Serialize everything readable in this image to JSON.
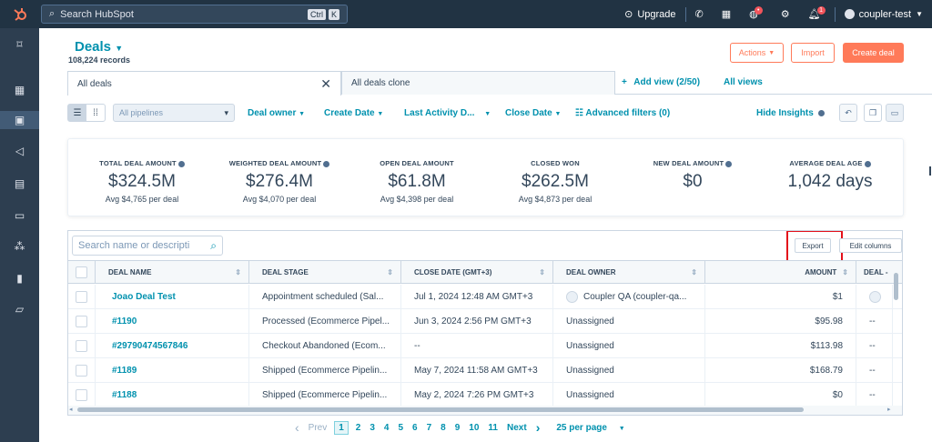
{
  "topbar": {
    "search_placeholder": "Search HubSpot",
    "shortcut_keys": [
      "Ctrl",
      "K"
    ],
    "upgrade_label": "Upgrade",
    "notification_badge_1": "•",
    "notification_badge_2": "1",
    "account_label": "coupler-test"
  },
  "header": {
    "title": "Deals",
    "records": "108,224 records",
    "actions_label": "Actions",
    "import_label": "Import",
    "create_label": "Create deal"
  },
  "tabs": {
    "items": [
      "All deals",
      "All deals clone"
    ],
    "add_view": "Add view (2/50)",
    "all_views": "All views"
  },
  "filters": {
    "pipeline_select": "All pipelines",
    "deal_owner": "Deal owner",
    "create_date": "Create Date",
    "last_activity": "Last Activity D...",
    "close_date": "Close Date",
    "advanced": "Advanced filters (0)",
    "hide_insights": "Hide Insights"
  },
  "stats": [
    {
      "label": "TOTAL DEAL AMOUNT",
      "value": "$324.5M",
      "sub": "Avg $4,765 per deal",
      "info": true
    },
    {
      "label": "WEIGHTED DEAL AMOUNT",
      "value": "$276.4M",
      "sub": "Avg $4,070 per deal",
      "info": true
    },
    {
      "label": "OPEN DEAL AMOUNT",
      "value": "$61.8M",
      "sub": "Avg $4,398 per deal",
      "info": false
    },
    {
      "label": "CLOSED WON",
      "value": "$262.5M",
      "sub": "Avg $4,873 per deal",
      "info": false
    },
    {
      "label": "NEW DEAL AMOUNT",
      "value": "$0",
      "sub": "",
      "info": true
    },
    {
      "label": "AVERAGE DEAL AGE",
      "value": "1,042 days",
      "sub": "",
      "info": true
    }
  ],
  "table": {
    "search_placeholder": "Search name or descripti",
    "export_label": "Export",
    "edit_columns_label": "Edit columns",
    "columns": [
      "DEAL NAME",
      "DEAL STAGE",
      "CLOSE DATE (GMT+3)",
      "DEAL OWNER",
      "AMOUNT",
      "DEAL -"
    ],
    "rows": [
      {
        "name": "Joao Deal Test",
        "stage": "Appointment scheduled (Sal...",
        "close": "Jul 1, 2024 12:48 AM GMT+3",
        "owner": "Coupler QA (coupler-qa...",
        "amount": "$1",
        "extra": ""
      },
      {
        "name": "#1190",
        "stage": "Processed (Ecommerce Pipel...",
        "close": "Jun 3, 2024 2:56 PM GMT+3",
        "owner": "Unassigned",
        "amount": "$95.98",
        "extra": "--"
      },
      {
        "name": "#29790474567846",
        "stage": "Checkout Abandoned (Ecom...",
        "close": "--",
        "owner": "Unassigned",
        "amount": "$113.98",
        "extra": "--"
      },
      {
        "name": "#1189",
        "stage": "Shipped (Ecommerce Pipelin...",
        "close": "May 7, 2024 11:58 AM GMT+3",
        "owner": "Unassigned",
        "amount": "$168.79",
        "extra": "--"
      },
      {
        "name": "#1188",
        "stage": "Shipped (Ecommerce Pipelin...",
        "close": "May 2, 2024 7:26 PM GMT+3",
        "owner": "Unassigned",
        "amount": "$0",
        "extra": "--"
      }
    ]
  },
  "pager": {
    "prev": "Prev",
    "pages": [
      "1",
      "2",
      "3",
      "4",
      "5",
      "6",
      "7",
      "8",
      "9",
      "10",
      "11"
    ],
    "next": "Next",
    "per_page": "25 per page"
  }
}
